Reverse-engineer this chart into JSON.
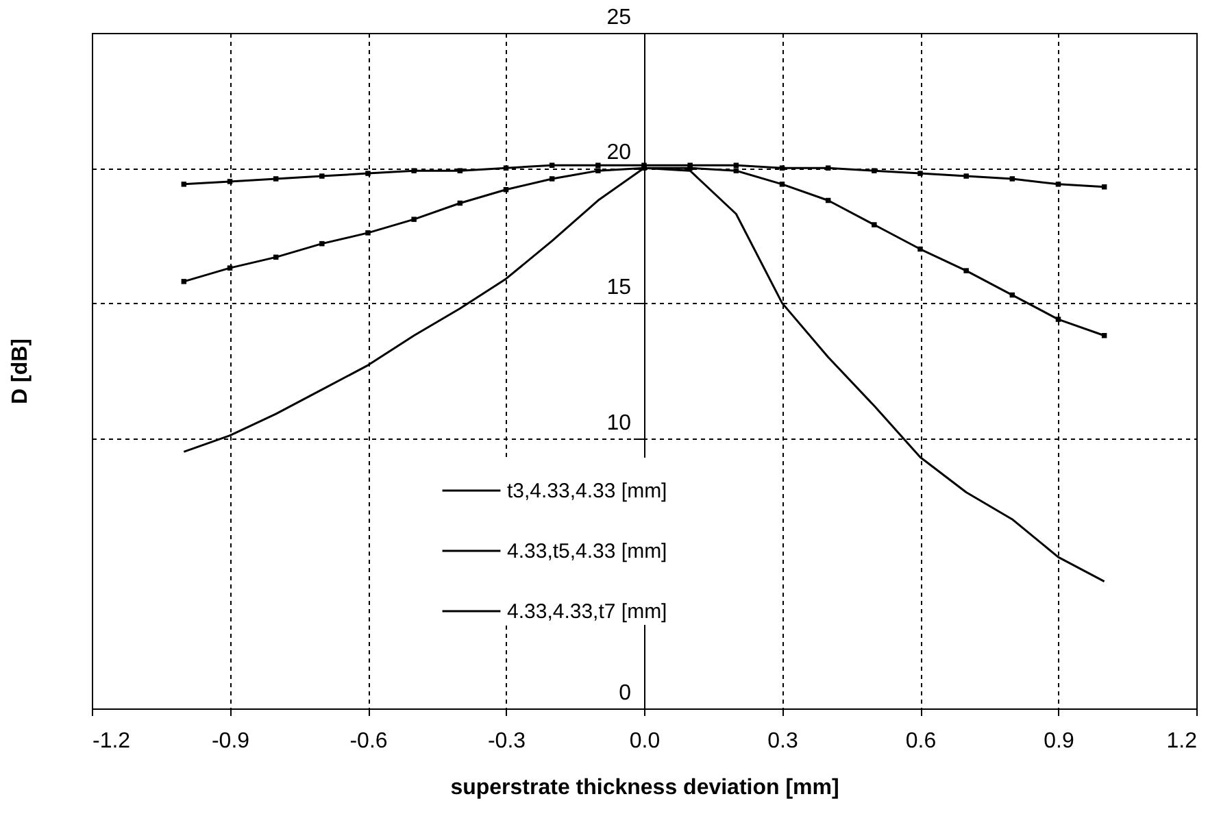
{
  "chart_data": {
    "type": "line",
    "xlabel": "superstrate thickness deviation [mm]",
    "ylabel": "D [dB]",
    "x": [
      -1.0,
      -0.9,
      -0.8,
      -0.7,
      -0.6,
      -0.5,
      -0.4,
      -0.3,
      -0.2,
      -0.1,
      0.0,
      0.1,
      0.2,
      0.3,
      0.4,
      0.5,
      0.6,
      0.7,
      0.8,
      0.9,
      1.0
    ],
    "series": [
      {
        "name": "t3,4.33,4.33 [mm]",
        "color": "#000000",
        "marker": "none",
        "values": [
          9.5,
          10.1,
          10.9,
          11.8,
          12.7,
          13.8,
          14.8,
          15.9,
          17.3,
          18.8,
          20.0,
          19.9,
          18.3,
          15.0,
          13.0,
          11.2,
          9.3,
          8.0,
          7.0,
          5.6,
          4.7
        ]
      },
      {
        "name": "4.33,t5,4.33 [mm]",
        "color": "#000000",
        "marker": "square",
        "values": [
          15.8,
          16.3,
          16.7,
          17.2,
          17.6,
          18.1,
          18.7,
          19.2,
          19.6,
          19.9,
          20.0,
          20.0,
          19.9,
          19.4,
          18.8,
          17.9,
          17.0,
          16.2,
          15.3,
          14.4,
          13.8
        ]
      },
      {
        "name": "4.33,4.33,t7 [mm]",
        "color": "#000000",
        "marker": "square",
        "values": [
          19.4,
          19.5,
          19.6,
          19.7,
          19.8,
          19.9,
          19.9,
          20.0,
          20.1,
          20.1,
          20.1,
          20.1,
          20.1,
          20.0,
          20.0,
          19.9,
          19.8,
          19.7,
          19.6,
          19.4,
          19.3
        ]
      }
    ],
    "xlim": [
      -1.2,
      1.2
    ],
    "xticks": [
      {
        "value": -1.2,
        "label": "-1.2"
      },
      {
        "value": -0.9,
        "label": "-0.9"
      },
      {
        "value": -0.6,
        "label": "-0.6"
      },
      {
        "value": -0.3,
        "label": "-0.3"
      },
      {
        "value": 0,
        "label": "0.0"
      },
      {
        "value": 0.3,
        "label": "0.3"
      },
      {
        "value": 0.6,
        "label": "0.6"
      },
      {
        "value": 0.9,
        "label": "0.9"
      },
      {
        "value": 1.2,
        "label": "1.2"
      }
    ],
    "ylim": [
      0,
      25
    ],
    "yticks": [
      0,
      10,
      15,
      20,
      25
    ],
    "grid": true,
    "legend": "bottom",
    "line_style": "solid"
  }
}
